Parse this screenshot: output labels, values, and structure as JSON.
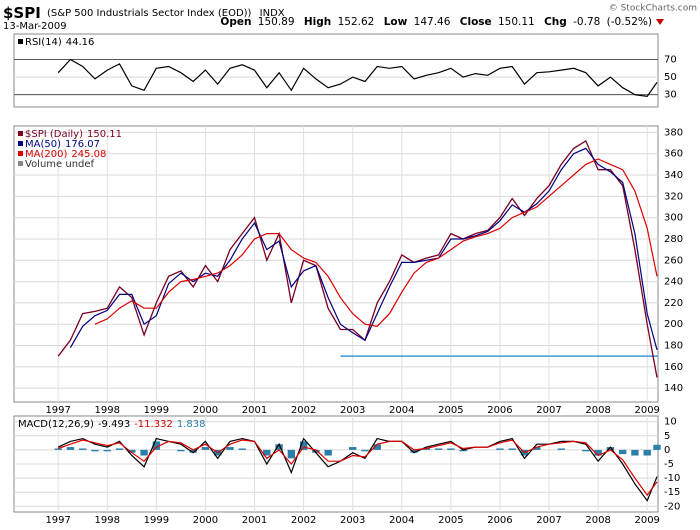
{
  "header": {
    "symbol": "$SPI",
    "name": "(S&P 500 Industrials Sector Index (EOD))",
    "exchange": "INDX",
    "date": "13-Mar-2009",
    "watermark": "© StockCharts.com",
    "quote": {
      "open_label": "Open",
      "open": 150.89,
      "high_label": "High",
      "high": 152.62,
      "low_label": "Low",
      "low": 147.46,
      "close_label": "Close",
      "close": 150.11,
      "chg_label": "Chg",
      "chg": -0.78,
      "chg_pct": "(-0.52%)"
    }
  },
  "chart_data": [
    {
      "type": "line",
      "xlim": [
        1996.1,
        2009.22
      ],
      "ylim": [
        16,
        99
      ],
      "yticks": [
        30,
        50,
        70
      ],
      "ref_lines": [
        30,
        70
      ],
      "grid": true,
      "x": [
        1997,
        1997.25,
        1997.5,
        1997.75,
        1998,
        1998.25,
        1998.5,
        1998.75,
        1999,
        1999.25,
        1999.5,
        1999.75,
        2000,
        2000.25,
        2000.5,
        2000.75,
        2001,
        2001.25,
        2001.5,
        2001.75,
        2002,
        2002.25,
        2002.5,
        2002.75,
        2003,
        2003.25,
        2003.5,
        2003.75,
        2004,
        2004.25,
        2004.5,
        2004.75,
        2005,
        2005.25,
        2005.5,
        2005.75,
        2006,
        2006.25,
        2006.5,
        2006.75,
        2007,
        2007.25,
        2007.5,
        2007.75,
        2008,
        2008.25,
        2008.5,
        2008.75,
        2009,
        2009.2
      ],
      "series": [
        {
          "name": "RSI(14)",
          "legend_value": 44.16,
          "color": "#000000",
          "values": [
            55,
            70,
            62,
            48,
            58,
            65,
            40,
            35,
            60,
            62,
            55,
            45,
            58,
            42,
            60,
            64,
            58,
            38,
            55,
            35,
            60,
            48,
            38,
            42,
            50,
            45,
            62,
            60,
            62,
            48,
            52,
            55,
            60,
            50,
            54,
            52,
            60,
            62,
            42,
            55,
            56,
            58,
            60,
            55,
            40,
            50,
            38,
            30,
            28,
            44
          ]
        }
      ]
    },
    {
      "type": "line",
      "xlim": [
        1996.1,
        2009.22
      ],
      "xticks": [
        1997,
        1998,
        1999,
        2000,
        2001,
        2002,
        2003,
        2004,
        2005,
        2006,
        2007,
        2008,
        2009
      ],
      "ylim": [
        127,
        386
      ],
      "yticks": [
        140,
        160,
        180,
        200,
        220,
        240,
        260,
        280,
        300,
        320,
        340,
        360,
        380
      ],
      "grid": true,
      "hline": {
        "value": 170,
        "from": 2002.75,
        "color": "#3d98d8"
      },
      "legend_extra": "Volume undef",
      "x": [
        1997,
        1997.25,
        1997.5,
        1997.75,
        1998,
        1998.25,
        1998.5,
        1998.75,
        1999,
        1999.25,
        1999.5,
        1999.75,
        2000,
        2000.25,
        2000.5,
        2000.75,
        2001,
        2001.25,
        2001.5,
        2001.75,
        2002,
        2002.25,
        2002.5,
        2002.75,
        2003,
        2003.25,
        2003.5,
        2003.75,
        2004,
        2004.25,
        2004.5,
        2004.75,
        2005,
        2005.25,
        2005.5,
        2005.75,
        2006,
        2006.25,
        2006.5,
        2006.75,
        2007,
        2007.25,
        2007.5,
        2007.75,
        2008,
        2008.25,
        2008.5,
        2008.75,
        2009,
        2009.2
      ],
      "series": [
        {
          "name": "$SPI (Daily)",
          "legend_value": 150.11,
          "color": "#7a0020",
          "values": [
            170,
            185,
            210,
            212,
            215,
            235,
            225,
            190,
            220,
            245,
            250,
            235,
            255,
            240,
            270,
            285,
            300,
            260,
            285,
            220,
            260,
            255,
            215,
            195,
            195,
            185,
            220,
            240,
            265,
            258,
            262,
            265,
            285,
            280,
            285,
            288,
            300,
            318,
            302,
            318,
            330,
            350,
            365,
            372,
            345,
            345,
            330,
            270,
            200,
            150
          ]
        },
        {
          "name": "MA(50)",
          "legend_value": 176.07,
          "color": "#000080",
          "values": [
            null,
            178,
            198,
            208,
            213,
            228,
            228,
            200,
            208,
            238,
            248,
            240,
            248,
            245,
            260,
            280,
            295,
            270,
            278,
            235,
            250,
            255,
            225,
            200,
            192,
            185,
            210,
            235,
            258,
            258,
            260,
            262,
            280,
            280,
            283,
            287,
            297,
            312,
            305,
            313,
            325,
            345,
            360,
            365,
            350,
            343,
            333,
            285,
            210,
            176
          ]
        },
        {
          "name": "MA(200)",
          "legend_value": 245.08,
          "color": "#dd0000",
          "values": [
            null,
            null,
            null,
            200,
            205,
            215,
            222,
            215,
            215,
            230,
            240,
            242,
            245,
            248,
            255,
            265,
            280,
            285,
            285,
            270,
            262,
            258,
            245,
            225,
            210,
            200,
            198,
            210,
            230,
            248,
            258,
            262,
            270,
            278,
            282,
            285,
            290,
            300,
            305,
            310,
            320,
            330,
            340,
            350,
            355,
            350,
            345,
            325,
            290,
            245
          ]
        }
      ]
    },
    {
      "type": "line",
      "legend_title": "MACD(12,26,9)",
      "xlim": [
        1996.1,
        2009.22
      ],
      "xticks": [
        1997,
        1998,
        1999,
        2000,
        2001,
        2002,
        2003,
        2004,
        2005,
        2006,
        2007,
        2008,
        2009
      ],
      "ylim": [
        -22,
        12
      ],
      "yticks": [
        10,
        5,
        0,
        -5,
        -10,
        -15,
        -20
      ],
      "grid": true,
      "x": [
        1997,
        1997.25,
        1997.5,
        1997.75,
        1998,
        1998.25,
        1998.5,
        1998.75,
        1999,
        1999.25,
        1999.5,
        1999.75,
        2000,
        2000.25,
        2000.5,
        2000.75,
        2001,
        2001.25,
        2001.5,
        2001.75,
        2002,
        2002.25,
        2002.5,
        2002.75,
        2003,
        2003.25,
        2003.5,
        2003.75,
        2004,
        2004.25,
        2004.5,
        2004.75,
        2005,
        2005.25,
        2005.5,
        2005.75,
        2006,
        2006.25,
        2006.5,
        2006.75,
        2007,
        2007.25,
        2007.5,
        2007.75,
        2008,
        2008.25,
        2008.5,
        2008.75,
        2009,
        2009.2
      ],
      "series": [
        {
          "type": "bar",
          "legend_value": 1.838,
          "color": "#2a7fa8",
          "values": [
            0.5,
            1,
            0.5,
            -0.5,
            -0.5,
            0.5,
            -1,
            -2,
            3,
            0,
            -0.5,
            -1,
            1,
            -2,
            1,
            0.5,
            0,
            -2,
            2,
            -3,
            3,
            -1,
            -2,
            0,
            1,
            -0.5,
            2,
            0,
            0,
            -1,
            0.5,
            0.5,
            0.5,
            -0.5,
            0,
            0,
            0.5,
            0.5,
            -2,
            1,
            0,
            0.5,
            0,
            -0.5,
            -2,
            1,
            -1.5,
            -2,
            -2,
            1.8
          ]
        },
        {
          "legend_value": -9.493,
          "color": "#000000",
          "values": [
            1,
            3,
            4,
            2,
            1,
            3,
            -2,
            -6,
            4,
            3,
            2,
            -1,
            3,
            -3,
            3,
            4,
            3,
            -5,
            2,
            -8,
            4,
            -1,
            -6,
            -4,
            -1,
            -3,
            4,
            3,
            3,
            -1,
            1,
            2,
            3,
            0,
            1,
            1,
            3,
            4,
            -3,
            2,
            2,
            3,
            3,
            2,
            -4,
            1,
            -5,
            -12,
            -18,
            -9.5
          ]
        },
        {
          "legend_value": -11.332,
          "color": "#dd0000",
          "values": [
            0.5,
            2,
            3.5,
            2.5,
            1.5,
            2.5,
            -1,
            -4,
            1,
            3,
            2.5,
            0,
            2,
            -1,
            2,
            3.5,
            3,
            -3,
            0,
            -5,
            1,
            0,
            -4,
            -4,
            -2,
            -2.5,
            2,
            3,
            3,
            0,
            0.5,
            1.5,
            2.5,
            0.5,
            1,
            1,
            2.5,
            3.5,
            -1,
            1,
            2,
            2.5,
            3,
            2.5,
            -2,
            0,
            -3.5,
            -10,
            -16,
            -11.3
          ]
        }
      ]
    }
  ]
}
